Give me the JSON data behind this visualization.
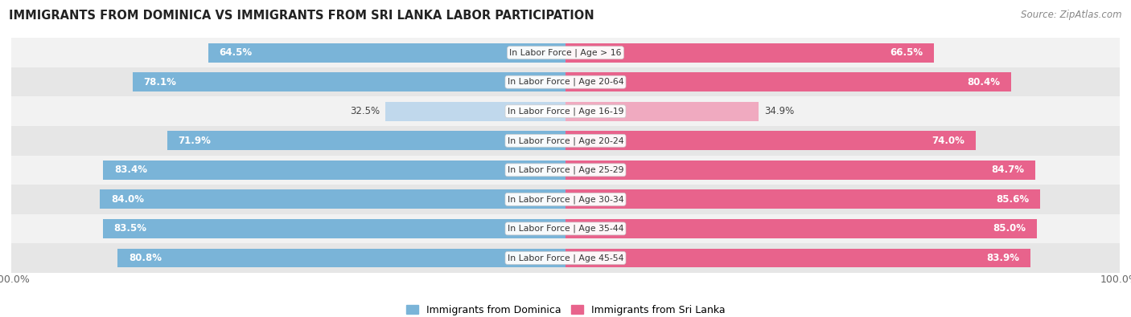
{
  "title": "IMMIGRANTS FROM DOMINICA VS IMMIGRANTS FROM SRI LANKA LABOR PARTICIPATION",
  "source": "Source: ZipAtlas.com",
  "categories": [
    "In Labor Force | Age > 16",
    "In Labor Force | Age 20-64",
    "In Labor Force | Age 16-19",
    "In Labor Force | Age 20-24",
    "In Labor Force | Age 25-29",
    "In Labor Force | Age 30-34",
    "In Labor Force | Age 35-44",
    "In Labor Force | Age 45-54"
  ],
  "dominica_values": [
    64.5,
    78.1,
    32.5,
    71.9,
    83.4,
    84.0,
    83.5,
    80.8
  ],
  "srilanka_values": [
    66.5,
    80.4,
    34.9,
    74.0,
    84.7,
    85.6,
    85.0,
    83.9
  ],
  "dominica_color": "#7ab4d8",
  "dominica_light_color": "#c0d8ec",
  "srilanka_color": "#e8638c",
  "srilanka_light_color": "#f0aac0",
  "row_bg_light": "#f2f2f2",
  "row_bg_dark": "#e6e6e6",
  "legend_dominica": "Immigrants from Dominica",
  "legend_srilanka": "Immigrants from Sri Lanka",
  "max_value": 100.0,
  "low_threshold": 50
}
